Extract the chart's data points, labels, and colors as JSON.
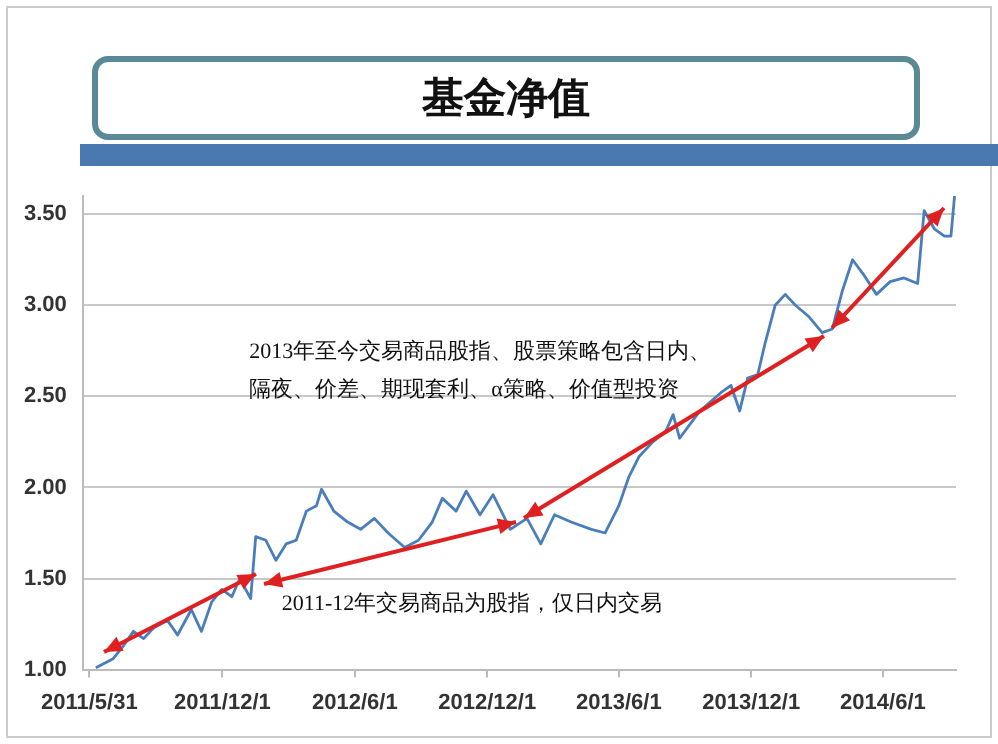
{
  "chart_data": {
    "type": "line",
    "title": "基金净值",
    "x": [
      "2011-06-09",
      "2011-07-03",
      "2011-07-17",
      "2011-07-31",
      "2011-08-14",
      "2011-08-28",
      "2011-09-16",
      "2011-09-30",
      "2011-10-19",
      "2011-11-02",
      "2011-11-16",
      "2011-11-30",
      "2011-12-14",
      "2011-12-25",
      "2012-01-09",
      "2012-01-16",
      "2012-01-30",
      "2012-02-13",
      "2012-02-27",
      "2012-03-12",
      "2012-03-26",
      "2012-04-09",
      "2012-04-16",
      "2012-05-03",
      "2012-05-22",
      "2012-06-09",
      "2012-06-28",
      "2012-07-17",
      "2012-08-09",
      "2012-08-28",
      "2012-09-16",
      "2012-09-30",
      "2012-10-19",
      "2012-11-02",
      "2012-11-21",
      "2012-12-09",
      "2012-12-23",
      "2013-01-02",
      "2013-01-25",
      "2013-02-13",
      "2013-03-04",
      "2013-03-27",
      "2013-04-24",
      "2013-05-13",
      "2013-06-01",
      "2013-06-15",
      "2013-06-29",
      "2013-07-18",
      "2013-08-05",
      "2013-08-15",
      "2013-08-24",
      "2013-09-21",
      "2013-10-20",
      "2013-11-03",
      "2013-11-15",
      "2013-11-26",
      "2013-12-10",
      "2013-12-20",
      "2014-01-03",
      "2014-01-17",
      "2014-01-31",
      "2014-02-18",
      "2014-03-09",
      "2014-03-23",
      "2014-04-06",
      "2014-04-20",
      "2014-05-05",
      "2014-05-23",
      "2014-06-11",
      "2014-06-30",
      "2014-07-19",
      "2014-07-28",
      "2014-08-11",
      "2014-08-25",
      "2014-09-03",
      "2014-09-08"
    ],
    "series": [
      {
        "color": "#4a7ebb",
        "values": [
          1.01,
          1.06,
          1.13,
          1.21,
          1.17,
          1.23,
          1.27,
          1.19,
          1.33,
          1.21,
          1.37,
          1.44,
          1.4,
          1.5,
          1.39,
          1.73,
          1.71,
          1.6,
          1.69,
          1.71,
          1.87,
          1.9,
          1.99,
          1.87,
          1.81,
          1.77,
          1.83,
          1.75,
          1.67,
          1.71,
          1.81,
          1.94,
          1.87,
          1.98,
          1.85,
          1.96,
          1.85,
          1.77,
          1.83,
          1.69,
          1.85,
          1.81,
          1.77,
          1.75,
          1.9,
          2.06,
          2.17,
          2.25,
          2.31,
          2.4,
          2.27,
          2.42,
          2.52,
          2.56,
          2.42,
          2.6,
          2.62,
          2.79,
          3.0,
          3.06,
          3.0,
          2.94,
          2.85,
          2.87,
          3.08,
          3.25,
          3.17,
          3.06,
          3.13,
          3.15,
          3.12,
          3.52,
          3.42,
          3.38,
          3.38,
          3.6
        ]
      }
    ],
    "xlim": [
      "2011-05-22",
      "2014-09-10"
    ],
    "xticks": [
      {
        "value": "2011-05-31",
        "label": "2011/5/31"
      },
      {
        "value": "2011-12-01",
        "label": "2011/12/1"
      },
      {
        "value": "2012-06-01",
        "label": "2012/6/1"
      },
      {
        "value": "2012-12-01",
        "label": "2012/12/1"
      },
      {
        "value": "2013-06-01",
        "label": "2013/6/1"
      },
      {
        "value": "2013-12-01",
        "label": "2013/12/1"
      },
      {
        "value": "2014-06-01",
        "label": "2014/6/1"
      }
    ],
    "ylim": [
      1.0,
      3.6
    ],
    "yticks": [
      {
        "value": 1.0,
        "label": "1.00"
      },
      {
        "value": 1.5,
        "label": "1.50"
      },
      {
        "value": 2.0,
        "label": "2.00"
      },
      {
        "value": 2.5,
        "label": "2.50"
      },
      {
        "value": 3.0,
        "label": "3.00"
      },
      {
        "value": 3.5,
        "label": "3.50"
      }
    ],
    "grid": "y",
    "marker": "none",
    "line_style": "solid",
    "annotations": [
      {
        "text": "2013年至今交易商品股指、股票策略包含日内、隔夜、价差、期现套利、α策略、价值型投资",
        "x": "2013-08-15",
        "y": 2.4
      },
      {
        "text": "2011-12年交易商品为股指，仅日内交易",
        "x": "2011-12-14",
        "y": 1.4
      }
    ]
  }
}
